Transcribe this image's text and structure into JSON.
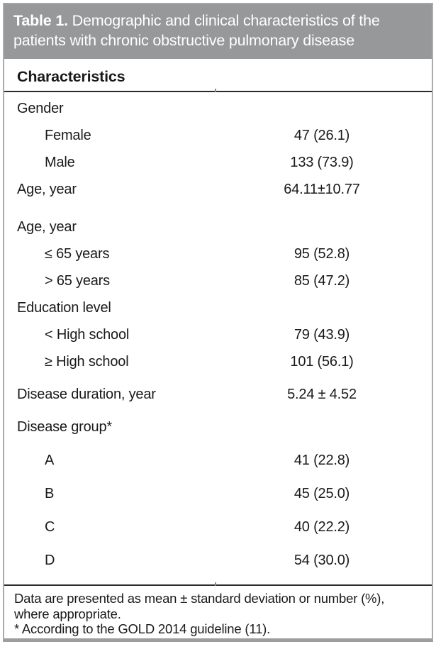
{
  "caption": {
    "label": "Table 1.",
    "text": " Demographic and clinical characteristics of the patients with chronic obstructive pulmonary disease"
  },
  "columns": {
    "characteristics": "Characteristics"
  },
  "rows": [
    {
      "label": "Gender",
      "value": "",
      "indent": false,
      "spacing": "first"
    },
    {
      "label": "Female",
      "value": "47 (26.1)",
      "indent": true,
      "spacing": "tight"
    },
    {
      "label": "Male",
      "value": "133 (73.9)",
      "indent": true,
      "spacing": "tight"
    },
    {
      "label": "Age, year",
      "value": "64.11±10.77",
      "indent": false,
      "spacing": "tight"
    },
    {
      "label": "Age, year",
      "value": "",
      "indent": false,
      "spacing": "wide"
    },
    {
      "label": "≤ 65 years",
      "value": "95 (52.8)",
      "indent": true,
      "spacing": "tight"
    },
    {
      "label": "> 65 years",
      "value": "85 (47.2)",
      "indent": true,
      "spacing": "tight"
    },
    {
      "label": "Education level",
      "value": "",
      "indent": false,
      "spacing": "tight"
    },
    {
      "label": "< High school",
      "value": "79 (43.9)",
      "indent": true,
      "spacing": "tight"
    },
    {
      "label": "≥ High school",
      "value": "101 (56.1)",
      "indent": true,
      "spacing": "tight"
    },
    {
      "label": "Disease duration, year",
      "value": "5.24 ± 4.52",
      "indent": false,
      "spacing": "med"
    },
    {
      "label": "Disease group*",
      "value": "",
      "indent": false,
      "spacing": "med"
    },
    {
      "label": "A",
      "value": "41 (22.8)",
      "indent": true,
      "spacing": "group"
    },
    {
      "label": "B",
      "value": "45 (25.0)",
      "indent": true,
      "spacing": "group"
    },
    {
      "label": "C",
      "value": "40 (22.2)",
      "indent": true,
      "spacing": "group"
    },
    {
      "label": "D",
      "value": "54 (30.0)",
      "indent": true,
      "spacing": "group"
    }
  ],
  "footnotes": [
    "Data are presented as mean ± standard deviation or number (%), where appropriate.",
    "* According to the GOLD 2014 guideline (11)."
  ],
  "colors": {
    "caption_background": "#96989a",
    "caption_text": "#ffffff",
    "border": "#a9abad",
    "rule": "#2b2b2b",
    "body_text": "#1a1a1a"
  }
}
